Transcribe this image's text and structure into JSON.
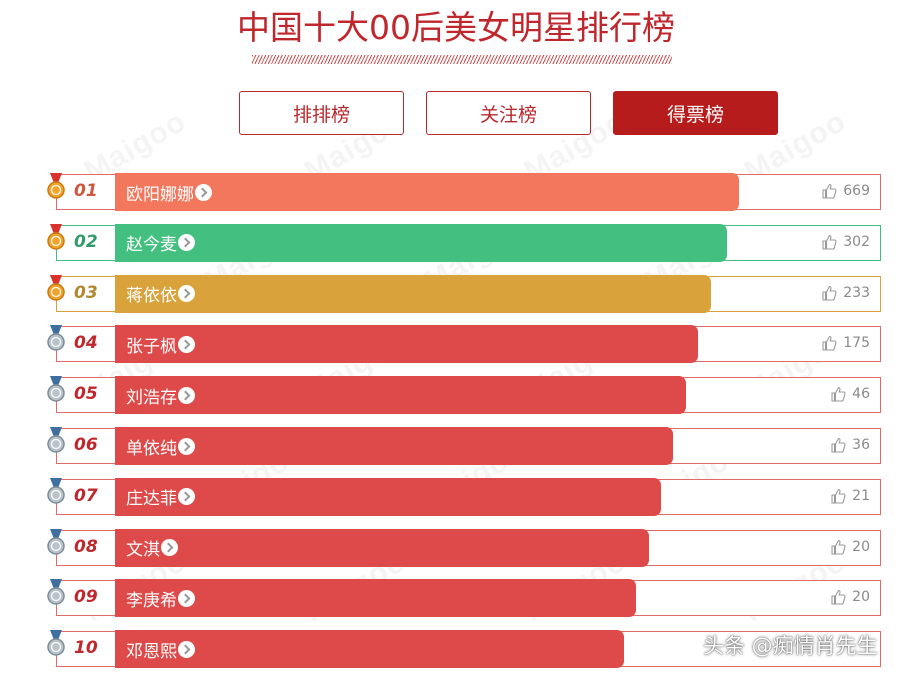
{
  "title": "中国十大00后美女明星排行榜",
  "tabs": [
    {
      "label": "排排榜",
      "active": false
    },
    {
      "label": "关注榜",
      "active": false
    },
    {
      "label": "得票榜",
      "active": true
    }
  ],
  "watermark_text": "Maigoo",
  "ranks": [
    {
      "rank": "01",
      "name": "欧阳娜娜",
      "votes": "669",
      "color": "#f2775c",
      "medal": "gold",
      "fill": 1.0
    },
    {
      "rank": "02",
      "name": "赵今麦",
      "votes": "302",
      "color": "#43c07f",
      "medal": "gold",
      "fill": 0.98
    },
    {
      "rank": "03",
      "name": "蒋依依",
      "votes": "233",
      "color": "#d9a23b",
      "medal": "gold",
      "fill": 0.955
    },
    {
      "rank": "04",
      "name": "张子枫",
      "votes": "175",
      "color": "#de4949",
      "medal": "silver",
      "fill": 0.935
    },
    {
      "rank": "05",
      "name": "刘浩存",
      "votes": "46",
      "color": "#de4949",
      "medal": "silver",
      "fill": 0.915
    },
    {
      "rank": "06",
      "name": "单依纯",
      "votes": "36",
      "color": "#de4949",
      "medal": "silver",
      "fill": 0.895
    },
    {
      "rank": "07",
      "name": "庄达菲",
      "votes": "21",
      "color": "#de4949",
      "medal": "silver",
      "fill": 0.875
    },
    {
      "rank": "08",
      "name": "文淇",
      "votes": "20",
      "color": "#de4949",
      "medal": "silver",
      "fill": 0.855
    },
    {
      "rank": "09",
      "name": "李庚希",
      "votes": "20",
      "color": "#de4949",
      "medal": "silver",
      "fill": 0.835
    },
    {
      "rank": "10",
      "name": "邓恩熙",
      "votes": "",
      "color": "#de4949",
      "medal": "silver",
      "fill": 0.815
    }
  ],
  "rank_text_colors": {
    "01": "#d2553e",
    "02": "#2f9a6a",
    "03": "#b18730",
    "default": "#c0272d"
  },
  "frame_colors": {
    "01": "#e06a6a",
    "02": "#43c07f",
    "03": "#d9a23b",
    "default": "#e06a6a"
  },
  "credit": "头条 @痴情肖先生"
}
